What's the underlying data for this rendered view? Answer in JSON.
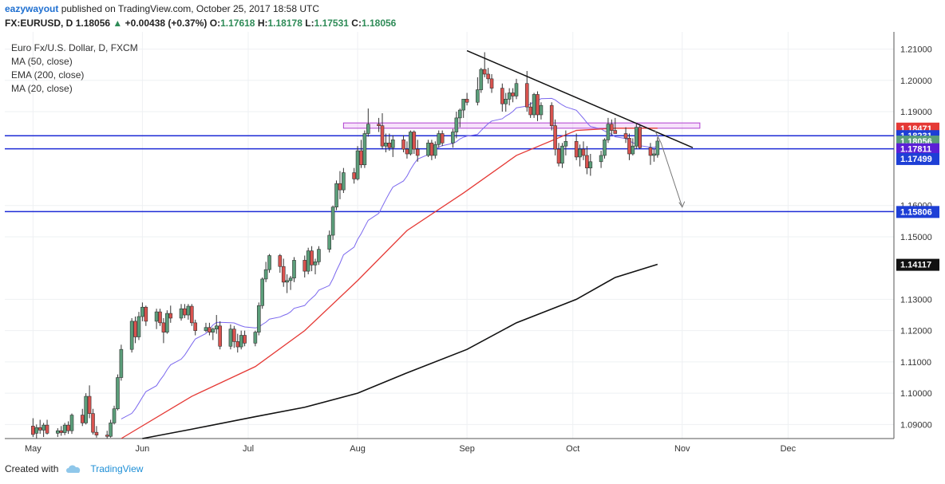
{
  "header": {
    "author": "eazywayout",
    "published_text": "published on TradingView.com, October 25, 2017 18:58 UTC"
  },
  "quote": {
    "symbol": "FX:EURUSD, D",
    "last": "1.18056",
    "arrow": "▲",
    "change": "+0.00438 (+0.37%)",
    "o_label": "O:",
    "o": "1.17618",
    "h_label": "H:",
    "h": "1.18178",
    "l_label": "L:",
    "l": "1.17531",
    "c_label": "C:",
    "c": "1.18056"
  },
  "footer": {
    "created_with": "Created with",
    "brand": "TradingView"
  },
  "chart_data": {
    "type": "candlestick",
    "title": "Euro Fx/U.S. Dollar, D, FXCM",
    "indicators": [
      "MA (50, close)",
      "EMA (200, close)",
      "MA (20, close)"
    ],
    "indicator_colors": {
      "MA (50, close)": "#e53935",
      "EMA (200, close)": "#111111",
      "MA (20, close)": "#7b68ee"
    },
    "x_months": [
      "May",
      "Jun",
      "Jul",
      "Aug",
      "Sep",
      "Oct",
      "Nov",
      "Dec"
    ],
    "y_ticks": [
      "1.21000",
      "1.20000",
      "1.19000",
      "1.16000",
      "1.15000",
      "1.13000",
      "1.12000",
      "1.11000",
      "1.10000",
      "1.09000"
    ],
    "ylim": [
      1.0855,
      1.2155
    ],
    "grid": true,
    "up_color": "#5b9e7a",
    "down_color": "#d9534f",
    "horizontal_lines": [
      1.18231,
      1.17811,
      1.15806
    ],
    "price_tags": [
      {
        "value": "1.18471",
        "color": "#e53935"
      },
      {
        "value": "1.18231",
        "color": "#1e3fd6"
      },
      {
        "value": "1.18056",
        "color": "#5b9e7a"
      },
      {
        "value": "1.17811",
        "color": "#5b1fd6"
      },
      {
        "value": "1.17499",
        "color": "#1e3fd6"
      },
      {
        "value": "1.15806",
        "color": "#1e3fd6"
      },
      {
        "value": "1.14117",
        "color": "#111111"
      }
    ],
    "resistance_zone": [
      1.1864,
      1.1847
    ],
    "trendline": {
      "start": [
        "2017-09-01",
        1.2095
      ],
      "end": [
        "2017-11-04",
        1.1785
      ]
    },
    "projection_arrow": {
      "start": [
        "2017-10-26",
        1.18
      ],
      "end": [
        "2017-11-01",
        1.1595
      ]
    },
    "candles": [
      [
        "2017-05-01",
        1.0895,
        1.092,
        1.086,
        1.0868
      ],
      [
        "2017-05-02",
        1.0872,
        1.09,
        1.0856,
        1.089
      ],
      [
        "2017-05-03",
        1.089,
        1.0915,
        1.087,
        1.0882
      ],
      [
        "2017-05-04",
        1.0882,
        1.0905,
        1.086,
        1.0898
      ],
      [
        "2017-05-05",
        1.0898,
        1.0915,
        1.0868,
        1.0872
      ],
      [
        "2017-05-08",
        1.0872,
        1.0888,
        1.086,
        1.088
      ],
      [
        "2017-05-09",
        1.088,
        1.0895,
        1.0864,
        1.0874
      ],
      [
        "2017-05-10",
        1.0874,
        1.0905,
        1.0866,
        1.0898
      ],
      [
        "2017-05-11",
        1.0898,
        1.091,
        1.087,
        1.088
      ],
      [
        "2017-05-12",
        1.088,
        1.0935,
        1.087,
        1.093
      ],
      [
        "2017-05-15",
        1.093,
        1.095,
        1.0895,
        1.0905
      ],
      [
        "2017-05-16",
        1.0905,
        1.1,
        1.09,
        1.099
      ],
      [
        "2017-05-17",
        1.099,
        1.1025,
        1.092,
        1.0935
      ],
      [
        "2017-05-18",
        1.0935,
        1.095,
        1.0868,
        1.0875
      ],
      [
        "2017-05-19",
        1.0875,
        1.0895,
        1.0858,
        1.0866
      ],
      [
        "2017-05-22",
        1.0866,
        1.088,
        1.0855,
        1.0862
      ],
      [
        "2017-05-23",
        1.0862,
        1.0915,
        1.0858,
        1.0905
      ],
      [
        "2017-05-24",
        1.0905,
        1.096,
        1.09,
        1.095
      ],
      [
        "2017-05-25",
        1.095,
        1.106,
        1.0945,
        1.105
      ],
      [
        "2017-05-26",
        1.105,
        1.1155,
        1.104,
        1.114
      ],
      [
        "2017-05-29",
        1.114,
        1.124,
        1.113,
        1.123
      ],
      [
        "2017-05-30",
        1.123,
        1.1245,
        1.116,
        1.118
      ],
      [
        "2017-05-31",
        1.118,
        1.126,
        1.117,
        1.1245
      ],
      [
        "2017-06-01",
        1.1245,
        1.129,
        1.123,
        1.1275
      ],
      [
        "2017-06-02",
        1.1275,
        1.128,
        1.1215,
        1.123
      ],
      [
        "2017-06-05",
        1.123,
        1.127,
        1.1205,
        1.126
      ],
      [
        "2017-06-06",
        1.126,
        1.127,
        1.1215,
        1.1225
      ],
      [
        "2017-06-07",
        1.1225,
        1.124,
        1.116,
        1.1195
      ],
      [
        "2017-06-08",
        1.1195,
        1.1265,
        1.119,
        1.1255
      ],
      [
        "2017-06-09",
        1.1255,
        1.128,
        1.1225,
        1.124
      ],
      [
        "2017-06-12",
        1.124,
        1.1285,
        1.1232,
        1.127
      ],
      [
        "2017-06-13",
        1.127,
        1.1285,
        1.124,
        1.125
      ],
      [
        "2017-06-14",
        1.125,
        1.1285,
        1.1235,
        1.1278
      ],
      [
        "2017-06-15",
        1.1278,
        1.1285,
        1.1215,
        1.1225
      ],
      [
        "2017-06-16",
        1.1225,
        1.1235,
        1.1185,
        1.12
      ],
      [
        "2017-06-19",
        1.12,
        1.1225,
        1.1195,
        1.121
      ],
      [
        "2017-06-20",
        1.121,
        1.1225,
        1.1185,
        1.1195
      ],
      [
        "2017-06-21",
        1.1195,
        1.121,
        1.117,
        1.1205
      ],
      [
        "2017-06-22",
        1.1205,
        1.125,
        1.119,
        1.1215
      ],
      [
        "2017-06-23",
        1.1215,
        1.123,
        1.114,
        1.115
      ],
      [
        "2017-06-26",
        1.115,
        1.122,
        1.114,
        1.1205
      ],
      [
        "2017-06-27",
        1.1205,
        1.1215,
        1.1145,
        1.1165
      ],
      [
        "2017-06-28",
        1.1165,
        1.119,
        1.113,
        1.1148
      ],
      [
        "2017-06-29",
        1.1148,
        1.12,
        1.114,
        1.1185
      ],
      [
        "2017-06-30",
        1.1185,
        1.12,
        1.115,
        1.116
      ],
      [
        "2017-07-03",
        1.116,
        1.12,
        1.115,
        1.1195
      ],
      [
        "2017-07-04",
        1.1195,
        1.129,
        1.1185,
        1.128
      ],
      [
        "2017-07-05",
        1.128,
        1.137,
        1.127,
        1.1365
      ],
      [
        "2017-07-06",
        1.1365,
        1.142,
        1.1355,
        1.1395
      ],
      [
        "2017-07-07",
        1.1395,
        1.1445,
        1.1385,
        1.144
      ],
      [
        "2017-07-10",
        1.144,
        1.1445,
        1.1385,
        1.1405
      ],
      [
        "2017-07-11",
        1.1405,
        1.143,
        1.134,
        1.1355
      ],
      [
        "2017-07-12",
        1.1355,
        1.138,
        1.132,
        1.136
      ],
      [
        "2017-07-13",
        1.136,
        1.1375,
        1.133,
        1.1368
      ],
      [
        "2017-07-14",
        1.1368,
        1.1435,
        1.1355,
        1.1425
      ],
      [
        "2017-07-17",
        1.1425,
        1.144,
        1.137,
        1.139
      ],
      [
        "2017-07-18",
        1.139,
        1.1465,
        1.138,
        1.1455
      ],
      [
        "2017-07-19",
        1.1455,
        1.147,
        1.139,
        1.141
      ],
      [
        "2017-07-20",
        1.141,
        1.143,
        1.138,
        1.142
      ],
      [
        "2017-07-21",
        1.142,
        1.147,
        1.141,
        1.146
      ],
      [
        "2017-07-24",
        1.146,
        1.152,
        1.145,
        1.1505
      ],
      [
        "2017-07-25",
        1.1505,
        1.16,
        1.149,
        1.1595
      ],
      [
        "2017-07-26",
        1.1595,
        1.168,
        1.1585,
        1.167
      ],
      [
        "2017-07-27",
        1.167,
        1.171,
        1.162,
        1.165
      ],
      [
        "2017-07-28",
        1.165,
        1.172,
        1.164,
        1.1705
      ],
      [
        "2017-07-31",
        1.1705,
        1.172,
        1.167,
        1.1685
      ],
      [
        "2017-08-01",
        1.1685,
        1.179,
        1.168,
        1.1775
      ],
      [
        "2017-08-02",
        1.1775,
        1.181,
        1.172,
        1.173
      ],
      [
        "2017-08-03",
        1.173,
        1.184,
        1.172,
        1.183
      ],
      [
        "2017-08-04",
        1.183,
        1.191,
        1.182,
        1.186
      ],
      [
        "2017-08-07",
        1.186,
        1.188,
        1.1835,
        1.1855
      ],
      [
        "2017-08-08",
        1.1855,
        1.1895,
        1.178,
        1.179
      ],
      [
        "2017-08-09",
        1.179,
        1.183,
        1.177,
        1.18
      ],
      [
        "2017-08-10",
        1.18,
        1.183,
        1.1775,
        1.1785
      ],
      [
        "2017-08-11",
        1.1785,
        1.1825,
        1.1755,
        1.181
      ],
      [
        "2017-08-14",
        1.181,
        1.1825,
        1.177,
        1.178
      ],
      [
        "2017-08-15",
        1.178,
        1.1805,
        1.175,
        1.1765
      ],
      [
        "2017-08-16",
        1.1765,
        1.184,
        1.176,
        1.1835
      ],
      [
        "2017-08-17",
        1.1835,
        1.184,
        1.1765,
        1.178
      ],
      [
        "2017-08-18",
        1.178,
        1.181,
        1.174,
        1.176
      ],
      [
        "2017-08-21",
        1.176,
        1.181,
        1.1755,
        1.18
      ],
      [
        "2017-08-22",
        1.18,
        1.181,
        1.1745,
        1.176
      ],
      [
        "2017-08-23",
        1.176,
        1.1805,
        1.175,
        1.1795
      ],
      [
        "2017-08-24",
        1.1795,
        1.184,
        1.1785,
        1.183
      ],
      [
        "2017-08-25",
        1.183,
        1.184,
        1.179,
        1.18
      ],
      [
        "2017-08-28",
        1.18,
        1.1845,
        1.1785,
        1.1835
      ],
      [
        "2017-08-29",
        1.1835,
        1.19,
        1.1815,
        1.188
      ],
      [
        "2017-08-30",
        1.188,
        1.191,
        1.185,
        1.1905
      ],
      [
        "2017-08-31",
        1.1905,
        1.194,
        1.188,
        1.194
      ],
      [
        "2017-09-01",
        1.194,
        1.196,
        1.192,
        1.193
      ],
      [
        "2017-09-04",
        1.193,
        1.201,
        1.192,
        1.197
      ],
      [
        "2017-09-05",
        1.197,
        1.204,
        1.196,
        1.2035
      ],
      [
        "2017-09-06",
        1.2035,
        1.209,
        1.201,
        1.202
      ],
      [
        "2017-09-07",
        1.202,
        1.204,
        1.199,
        1.2005
      ],
      [
        "2017-09-08",
        1.2005,
        1.202,
        1.196,
        1.1975
      ],
      [
        "2017-09-11",
        1.1975,
        1.199,
        1.19,
        1.1925
      ],
      [
        "2017-09-12",
        1.1925,
        1.196,
        1.19,
        1.194
      ],
      [
        "2017-09-13",
        1.194,
        1.1975,
        1.192,
        1.196
      ],
      [
        "2017-09-14",
        1.196,
        1.1975,
        1.193,
        1.195
      ],
      [
        "2017-09-15",
        1.195,
        1.2005,
        1.194,
        1.199
      ],
      [
        "2017-09-18",
        1.199,
        1.203,
        1.19,
        1.1915
      ],
      [
        "2017-09-19",
        1.1915,
        1.193,
        1.188,
        1.189
      ],
      [
        "2017-09-20",
        1.189,
        1.196,
        1.188,
        1.1955
      ],
      [
        "2017-09-21",
        1.1955,
        1.1965,
        1.187,
        1.189
      ],
      [
        "2017-09-22",
        1.189,
        1.193,
        1.1875,
        1.192
      ],
      [
        "2017-09-25",
        1.192,
        1.193,
        1.184,
        1.1855
      ],
      [
        "2017-09-26",
        1.1855,
        1.1875,
        1.176,
        1.178
      ],
      [
        "2017-09-27",
        1.178,
        1.18,
        1.1725,
        1.1735
      ],
      [
        "2017-09-28",
        1.1735,
        1.18,
        1.172,
        1.179
      ],
      [
        "2017-09-29",
        1.179,
        1.184,
        1.176,
        1.1805
      ],
      [
        "2017-10-02",
        1.1805,
        1.183,
        1.1745,
        1.1755
      ],
      [
        "2017-10-03",
        1.1755,
        1.1795,
        1.1725,
        1.178
      ],
      [
        "2017-10-04",
        1.178,
        1.1805,
        1.1745,
        1.176
      ],
      [
        "2017-10-05",
        1.176,
        1.179,
        1.17,
        1.172
      ],
      [
        "2017-10-06",
        1.172,
        1.1765,
        1.1695,
        1.174
      ],
      [
        "2017-10-09",
        1.174,
        1.1775,
        1.172,
        1.176
      ],
      [
        "2017-10-10",
        1.176,
        1.1815,
        1.175,
        1.181
      ],
      [
        "2017-10-11",
        1.181,
        1.188,
        1.18,
        1.186
      ],
      [
        "2017-10-12",
        1.186,
        1.1875,
        1.1825,
        1.184
      ],
      [
        "2017-10-13",
        1.184,
        1.188,
        1.183,
        1.183
      ],
      [
        "2017-10-16",
        1.183,
        1.185,
        1.18,
        1.1815
      ],
      [
        "2017-10-17",
        1.1815,
        1.183,
        1.1745,
        1.1765
      ],
      [
        "2017-10-18",
        1.1765,
        1.1815,
        1.176,
        1.179
      ],
      [
        "2017-10-19",
        1.179,
        1.186,
        1.178,
        1.185
      ],
      [
        "2017-10-20",
        1.185,
        1.186,
        1.178,
        1.1785
      ],
      [
        "2017-10-23",
        1.1785,
        1.18,
        1.173,
        1.176
      ],
      [
        "2017-10-24",
        1.176,
        1.178,
        1.174,
        1.1765
      ],
      [
        "2017-10-25",
        1.1762,
        1.1818,
        1.1753,
        1.1806
      ]
    ]
  }
}
